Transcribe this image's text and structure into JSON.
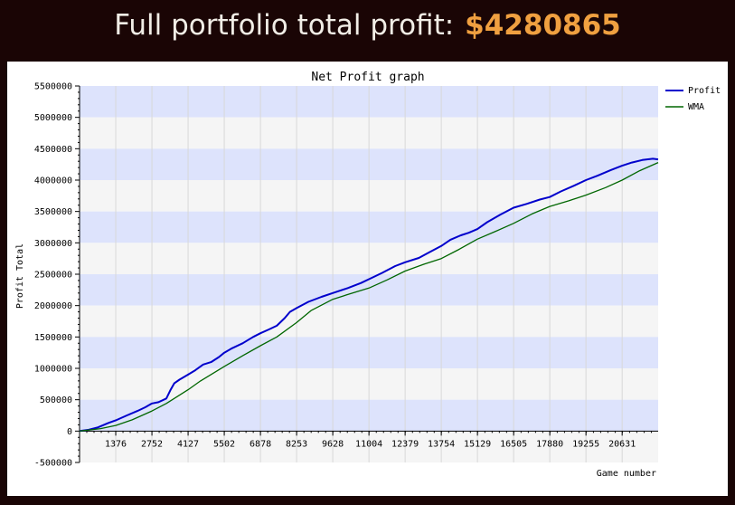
{
  "header": {
    "title": "Full portfolio total profit:",
    "amount": "$4280865"
  },
  "colors": {
    "background": "#1a0505",
    "header_text": "#f1ede6",
    "amount": "#f0a040",
    "band_blue": "#dde3fc",
    "band_gray": "#f5f5f5",
    "profit_line": "#0000cc",
    "wma_line": "#006600"
  },
  "chart_data": {
    "type": "line",
    "title": "Net Profit graph",
    "xlabel": "Game number",
    "ylabel": "Profit Total",
    "xlim": [
      0,
      22000
    ],
    "ylim": [
      -500000,
      5500000
    ],
    "x_ticks": [
      "1376",
      "2752",
      "4127",
      "5502",
      "6878",
      "8253",
      "9628",
      "11004",
      "12379",
      "13754",
      "15129",
      "16505",
      "17880",
      "19255",
      "20631"
    ],
    "y_ticks": [
      "-500000",
      "0",
      "500000",
      "1000000",
      "1500000",
      "2000000",
      "2500000",
      "3000000",
      "3500000",
      "4000000",
      "4500000",
      "5000000",
      "5500000"
    ],
    "grid": true,
    "legend": "top-right",
    "series": [
      {
        "name": "Profit",
        "color": "#0000cc",
        "x": [
          0,
          350,
          700,
          1100,
          1376,
          1800,
          2200,
          2500,
          2752,
          3000,
          3300,
          3450,
          3600,
          3800,
          4127,
          4400,
          4700,
          5000,
          5300,
          5502,
          5800,
          6200,
          6600,
          6878,
          7200,
          7500,
          7800,
          8000,
          8253,
          8700,
          9200,
          9628,
          10200,
          10700,
          11004,
          11500,
          12000,
          12379,
          12900,
          13300,
          13754,
          14100,
          14500,
          14800,
          15129,
          15500,
          16000,
          16505,
          17000,
          17500,
          17880,
          18300,
          18800,
          19255,
          19700,
          20200,
          20631,
          21000,
          21400,
          21800,
          22000
        ],
        "y": [
          0,
          20000,
          60000,
          130000,
          170000,
          250000,
          320000,
          380000,
          440000,
          460000,
          520000,
          650000,
          760000,
          820000,
          900000,
          970000,
          1060000,
          1100000,
          1180000,
          1250000,
          1320000,
          1400000,
          1500000,
          1560000,
          1620000,
          1680000,
          1800000,
          1900000,
          1960000,
          2060000,
          2140000,
          2200000,
          2280000,
          2360000,
          2420000,
          2520000,
          2630000,
          2690000,
          2760000,
          2850000,
          2950000,
          3050000,
          3120000,
          3160000,
          3220000,
          3330000,
          3450000,
          3560000,
          3620000,
          3690000,
          3730000,
          3820000,
          3910000,
          4000000,
          4070000,
          4160000,
          4230000,
          4280000,
          4320000,
          4340000,
          4330000
        ]
      },
      {
        "name": "WMA",
        "color": "#006600",
        "x": [
          0,
          800,
          1376,
          2000,
          2752,
          3300,
          4127,
          4600,
          5502,
          6200,
          6878,
          7500,
          8253,
          8800,
          9628,
          10300,
          11004,
          11700,
          12379,
          13100,
          13754,
          14400,
          15129,
          15800,
          16505,
          17200,
          17880,
          18600,
          19255,
          20000,
          20631,
          21300,
          22000
        ],
        "y": [
          0,
          40000,
          90000,
          180000,
          320000,
          440000,
          660000,
          800000,
          1030000,
          1200000,
          1360000,
          1500000,
          1730000,
          1920000,
          2100000,
          2190000,
          2280000,
          2410000,
          2550000,
          2660000,
          2750000,
          2890000,
          3060000,
          3180000,
          3310000,
          3460000,
          3580000,
          3670000,
          3760000,
          3880000,
          4000000,
          4150000,
          4280000
        ]
      }
    ]
  }
}
